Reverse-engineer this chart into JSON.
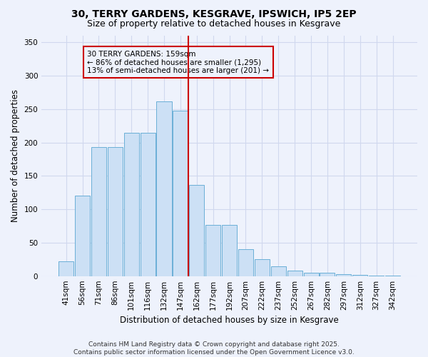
{
  "title1": "30, TERRY GARDENS, KESGRAVE, IPSWICH, IP5 2EP",
  "title2": "Size of property relative to detached houses in Kesgrave",
  "xlabel": "Distribution of detached houses by size in Kesgrave",
  "ylabel": "Number of detached properties",
  "categories": [
    "41sqm",
    "56sqm",
    "71sqm",
    "86sqm",
    "101sqm",
    "116sqm",
    "132sqm",
    "147sqm",
    "162sqm",
    "177sqm",
    "192sqm",
    "207sqm",
    "222sqm",
    "237sqm",
    "252sqm",
    "267sqm",
    "282sqm",
    "297sqm",
    "312sqm",
    "327sqm",
    "342sqm"
  ],
  "values": [
    22,
    120,
    193,
    193,
    215,
    215,
    262,
    248,
    137,
    77,
    77,
    40,
    25,
    15,
    8,
    5,
    5,
    3,
    2,
    1,
    1
  ],
  "bar_color": "#cce0f5",
  "bar_edge_color": "#6aafd6",
  "vline_color": "#cc0000",
  "annotation_text": "30 TERRY GARDENS: 159sqm\n← 86% of detached houses are smaller (1,295)\n13% of semi-detached houses are larger (201) →",
  "annotation_box_edge": "#cc0000",
  "ylim": [
    0,
    360
  ],
  "yticks": [
    0,
    50,
    100,
    150,
    200,
    250,
    300,
    350
  ],
  "footer": "Contains HM Land Registry data © Crown copyright and database right 2025.\nContains public sector information licensed under the Open Government Licence v3.0.",
  "background_color": "#eef2fc",
  "grid_color": "#d0d8ee",
  "title_fontsize": 10,
  "subtitle_fontsize": 9,
  "axis_label_fontsize": 8.5,
  "tick_fontsize": 7.5,
  "footer_fontsize": 6.5
}
